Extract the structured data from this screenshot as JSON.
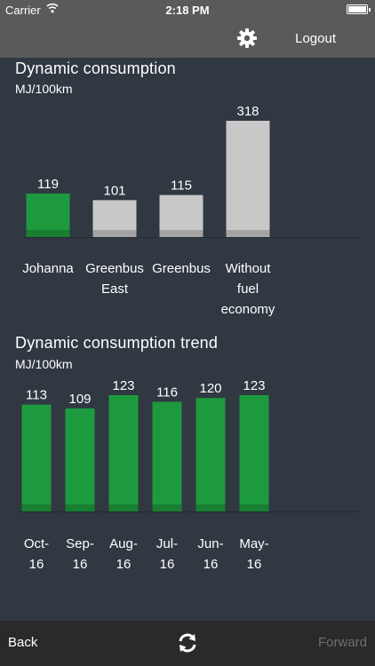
{
  "status_bar": {
    "carrier": "Carrier",
    "time": "2:18 PM",
    "wifi_icon": "wifi-icon",
    "battery_icon": "battery-icon"
  },
  "nav": {
    "settings_icon": "gear-icon",
    "logout_label": "Logout"
  },
  "section1": {
    "title": "Dynamic consumption",
    "unit": "MJ/100km"
  },
  "section2": {
    "title": "Dynamic consumption trend",
    "unit": "MJ/100km"
  },
  "toolbar": {
    "back_label": "Back",
    "refresh_icon": "refresh-icon",
    "forward_label": "Forward"
  },
  "colors": {
    "highlight": "#1e9a3e",
    "neutral": "#c8c8c8",
    "background": "#303842",
    "bar_bar": "#5a5a5a"
  },
  "chart_data": [
    {
      "type": "bar",
      "title": "Dynamic consumption",
      "ylabel": "MJ/100km",
      "categories": [
        "Johanna",
        "Greenbus East",
        "Greenbus",
        "Without fuel economy"
      ],
      "category_lines": [
        [
          "Johanna"
        ],
        [
          "Greenbus",
          "East"
        ],
        [
          "Greenbus"
        ],
        [
          "Without",
          "fuel",
          "economy"
        ]
      ],
      "values": [
        119,
        101,
        115,
        318
      ],
      "highlight_index": 0,
      "grid": false,
      "legend": false
    },
    {
      "type": "bar",
      "title": "Dynamic consumption trend",
      "ylabel": "MJ/100km",
      "categories": [
        "Oct-16",
        "Sep-16",
        "Aug-16",
        "Jul-16",
        "Jun-16",
        "May-16"
      ],
      "category_lines": [
        [
          "Oct-",
          "16"
        ],
        [
          "Sep-",
          "16"
        ],
        [
          "Aug-",
          "16"
        ],
        [
          "Jul-",
          "16"
        ],
        [
          "Jun-",
          "16"
        ],
        [
          "May-",
          "16"
        ]
      ],
      "values": [
        113,
        109,
        123,
        116,
        120,
        123
      ],
      "grid": false,
      "legend": false
    }
  ]
}
